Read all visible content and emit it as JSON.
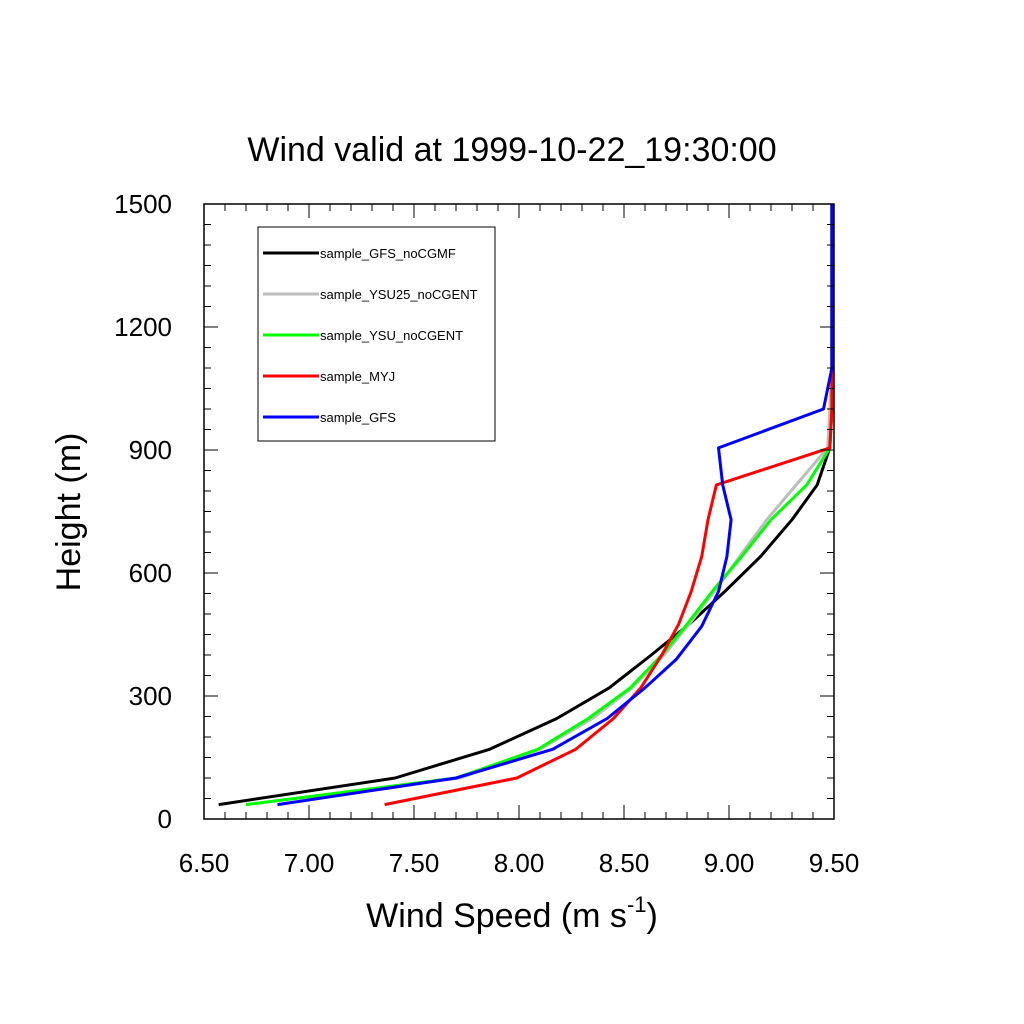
{
  "chart_data": {
    "type": "line",
    "title": "Wind valid at 1999-10-22_19:30:00",
    "xlabel": "Wind Speed (m s",
    "xlabel_sup": "-1",
    "xlabel_end": ")",
    "ylabel": "Height (m)",
    "xlim": [
      6.5,
      9.5
    ],
    "ylim": [
      0,
      1500
    ],
    "xticks": [
      6.5,
      7.0,
      7.5,
      8.0,
      8.5,
      9.0,
      9.5
    ],
    "xtick_labels": [
      "6.50",
      "7.00",
      "7.50",
      "8.00",
      "8.50",
      "9.00",
      "9.50"
    ],
    "yticks": [
      0,
      300,
      600,
      900,
      1200,
      1500
    ],
    "ytick_labels": [
      "0",
      "300",
      "600",
      "900",
      "1200",
      "1500"
    ],
    "grid": false,
    "legend_position": "top-left",
    "series": [
      {
        "name": "sample_GFS_noCGMF",
        "color": "#000000",
        "points": [
          [
            6.57,
            35
          ],
          [
            7.41,
            100
          ],
          [
            7.86,
            170
          ],
          [
            8.18,
            245
          ],
          [
            8.43,
            320
          ],
          [
            8.63,
            400
          ],
          [
            8.81,
            475
          ],
          [
            8.98,
            555
          ],
          [
            9.15,
            640
          ],
          [
            9.3,
            730
          ],
          [
            9.42,
            815
          ],
          [
            9.48,
            905
          ],
          [
            9.49,
            1000
          ],
          [
            9.49,
            1100
          ],
          [
            9.49,
            1200
          ],
          [
            9.49,
            1300
          ],
          [
            9.49,
            1400
          ],
          [
            9.49,
            1500
          ]
        ]
      },
      {
        "name": "sample_YSU25_noCGENT",
        "color": "#bdbdbd",
        "points": [
          [
            6.7,
            35
          ],
          [
            7.72,
            100
          ],
          [
            8.1,
            170
          ],
          [
            8.35,
            245
          ],
          [
            8.54,
            320
          ],
          [
            8.69,
            400
          ],
          [
            8.81,
            475
          ],
          [
            8.93,
            555
          ],
          [
            9.05,
            640
          ],
          [
            9.18,
            730
          ],
          [
            9.32,
            815
          ],
          [
            9.47,
            905
          ],
          [
            9.48,
            1000
          ],
          [
            9.49,
            1100
          ],
          [
            9.49,
            1200
          ],
          [
            9.49,
            1300
          ],
          [
            9.49,
            1400
          ],
          [
            9.49,
            1500
          ]
        ]
      },
      {
        "name": "sample_YSU_noCGENT",
        "color": "#00ff00",
        "points": [
          [
            6.7,
            35
          ],
          [
            7.7,
            100
          ],
          [
            8.09,
            170
          ],
          [
            8.33,
            245
          ],
          [
            8.53,
            320
          ],
          [
            8.68,
            400
          ],
          [
            8.8,
            475
          ],
          [
            8.92,
            555
          ],
          [
            9.06,
            640
          ],
          [
            9.2,
            730
          ],
          [
            9.37,
            815
          ],
          [
            9.48,
            905
          ],
          [
            9.49,
            1000
          ],
          [
            9.49,
            1100
          ],
          [
            9.49,
            1200
          ],
          [
            9.49,
            1300
          ],
          [
            9.49,
            1400
          ],
          [
            9.49,
            1500
          ]
        ]
      },
      {
        "name": "sample_MYJ",
        "color": "#ff0000",
        "points": [
          [
            7.36,
            35
          ],
          [
            7.99,
            100
          ],
          [
            8.27,
            170
          ],
          [
            8.45,
            245
          ],
          [
            8.58,
            320
          ],
          [
            8.68,
            400
          ],
          [
            8.76,
            475
          ],
          [
            8.82,
            555
          ],
          [
            8.87,
            640
          ],
          [
            8.9,
            730
          ],
          [
            8.94,
            815
          ],
          [
            9.48,
            905
          ],
          [
            9.49,
            1000
          ],
          [
            9.49,
            1100
          ],
          [
            9.49,
            1200
          ],
          [
            9.49,
            1300
          ],
          [
            9.49,
            1400
          ],
          [
            9.49,
            1500
          ]
        ]
      },
      {
        "name": "sample_GFS",
        "color": "#0000ff",
        "points": [
          [
            6.85,
            35
          ],
          [
            7.7,
            100
          ],
          [
            8.16,
            170
          ],
          [
            8.42,
            245
          ],
          [
            8.6,
            320
          ],
          [
            8.75,
            390
          ],
          [
            8.87,
            470
          ],
          [
            8.95,
            555
          ],
          [
            8.99,
            640
          ],
          [
            9.01,
            730
          ],
          [
            8.97,
            815
          ],
          [
            8.95,
            905
          ],
          [
            9.45,
            1000
          ],
          [
            9.49,
            1100
          ],
          [
            9.49,
            1200
          ],
          [
            9.49,
            1300
          ],
          [
            9.49,
            1400
          ],
          [
            9.49,
            1500
          ]
        ]
      }
    ]
  }
}
